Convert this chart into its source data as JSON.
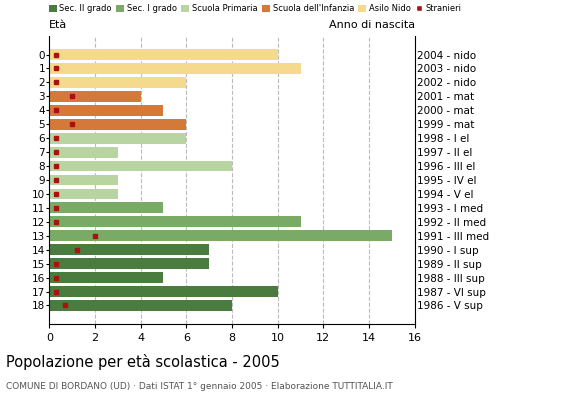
{
  "ages": [
    0,
    1,
    2,
    3,
    4,
    5,
    6,
    7,
    8,
    9,
    10,
    11,
    12,
    13,
    14,
    15,
    16,
    17,
    18
  ],
  "years": [
    "2004 - nido",
    "2003 - nido",
    "2002 - nido",
    "2001 - mat",
    "2000 - mat",
    "1999 - mat",
    "1998 - I el",
    "1997 - II el",
    "1996 - III el",
    "1995 - IV el",
    "1994 - V el",
    "1993 - I med",
    "1992 - II med",
    "1991 - III med",
    "1990 - I sup",
    "1989 - II sup",
    "1988 - III sup",
    "1987 - VI sup",
    "1986 - V sup"
  ],
  "values": [
    10,
    11,
    6,
    4,
    5,
    6,
    6,
    3,
    8,
    3,
    3,
    5,
    11,
    15,
    7,
    7,
    5,
    10,
    8
  ],
  "stranieri_x": [
    0.3,
    0.3,
    0.3,
    1.0,
    0.3,
    1.0,
    0.3,
    0.3,
    0.3,
    0.3,
    0.3,
    0.3,
    0.3,
    2.0,
    1.2,
    0.3,
    0.3,
    0.3,
    0.7
  ],
  "stranieri_show": [
    false,
    false,
    false,
    true,
    false,
    true,
    false,
    false,
    false,
    false,
    false,
    false,
    false,
    true,
    true,
    false,
    false,
    false,
    true
  ],
  "bar_colors": [
    "#f5d98c",
    "#f5d98c",
    "#f5d98c",
    "#d4793a",
    "#d4793a",
    "#d4793a",
    "#b8d4a0",
    "#b8d4a0",
    "#b8d4a0",
    "#b8d4a0",
    "#b8d4a0",
    "#7aab66",
    "#7aab66",
    "#7aab66",
    "#4a7c3f",
    "#4a7c3f",
    "#4a7c3f",
    "#4a7c3f",
    "#4a7c3f"
  ],
  "stranieri_color": "#aa1111",
  "title": "Popolazione per età scolastica - 2005",
  "subtitle": "COMUNE DI BORDANO (UD) · Dati ISTAT 1° gennaio 2005 · Elaborazione TUTTITALIA.IT",
  "legend_labels": [
    "Sec. II grado",
    "Sec. I grado",
    "Scuola Primaria",
    "Scuola dell'Infanzia",
    "Asilo Nido",
    "Stranieri"
  ],
  "legend_colors": [
    "#4a7c3f",
    "#7aab66",
    "#b8d4a0",
    "#d4793a",
    "#f5d98c",
    "#aa1111"
  ],
  "xlim": [
    0,
    16
  ],
  "xticks": [
    0,
    2,
    4,
    6,
    8,
    10,
    12,
    14,
    16
  ],
  "bg_color": "#ffffff",
  "grid_color": "#bbbbbb",
  "label_left": "Età",
  "label_right": "Anno di nascita"
}
